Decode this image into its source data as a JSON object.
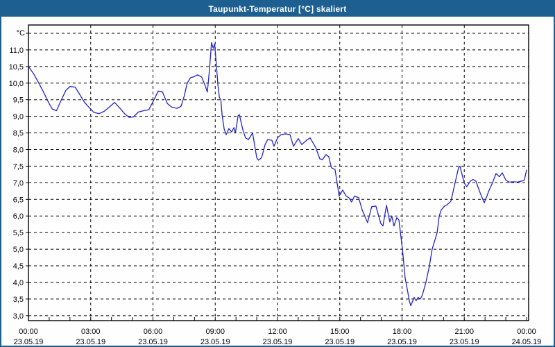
{
  "window": {
    "title": "Taupunkt-Temperatur [°C] skaliert"
  },
  "colors": {
    "titlebar_bg": "#1d5f90",
    "titlebar_text": "#ffffff",
    "frame_border": "#1d5f90",
    "page_bg": "#fdfefd",
    "grid_color": "#000000",
    "axis_color": "#000000",
    "series_color": "#2323cc"
  },
  "chart_data": {
    "type": "line",
    "title": "Taupunkt-Temperatur [°C] skaliert",
    "ylabel": "°C",
    "y_unit_label": "°C",
    "grid": true,
    "legend_position": "none",
    "ylim": [
      2.85,
      11.75
    ],
    "xlim_hours": [
      0,
      24.1
    ],
    "y_gridline_min": 3.0,
    "y_gridline_max": 11.5,
    "y_gridline_step": 0.5,
    "x_minor_tick_step_hours": 1,
    "y_ticks": [
      {
        "value": 11.0,
        "label": "11,0"
      },
      {
        "value": 10.5,
        "label": "10,5"
      },
      {
        "value": 10.0,
        "label": "10,0"
      },
      {
        "value": 9.5,
        "label": "9,5"
      },
      {
        "value": 9.0,
        "label": "9,0"
      },
      {
        "value": 8.5,
        "label": "8,5"
      },
      {
        "value": 8.0,
        "label": "8,0"
      },
      {
        "value": 7.5,
        "label": "7,5"
      },
      {
        "value": 7.0,
        "label": "7,0"
      },
      {
        "value": 6.5,
        "label": "6,5"
      },
      {
        "value": 6.0,
        "label": "6,0"
      },
      {
        "value": 5.5,
        "label": "5,5"
      },
      {
        "value": 5.0,
        "label": "5,0"
      },
      {
        "value": 4.5,
        "label": "4,5"
      },
      {
        "value": 4.0,
        "label": "4,0"
      },
      {
        "value": 3.5,
        "label": "3,5"
      },
      {
        "value": 3.0,
        "label": "3,0"
      }
    ],
    "x_ticks": [
      {
        "hours": 0,
        "time": "00:00",
        "date": "23.05.19"
      },
      {
        "hours": 3,
        "time": "03:00",
        "date": "23.05.19"
      },
      {
        "hours": 6,
        "time": "06:00",
        "date": "23.05.19"
      },
      {
        "hours": 9,
        "time": "09:00",
        "date": "23.05.19"
      },
      {
        "hours": 12,
        "time": "12:00",
        "date": "23.05.19"
      },
      {
        "hours": 15,
        "time": "15:00",
        "date": "23.05.19"
      },
      {
        "hours": 18,
        "time": "18:00",
        "date": "23.05.19"
      },
      {
        "hours": 21,
        "time": "21:00",
        "date": "23.05.19"
      },
      {
        "hours": 24,
        "time": "00:00",
        "date": "24.05.19"
      }
    ],
    "series": [
      {
        "name": "Taupunkt-Temperatur",
        "unit": "°C",
        "points": [
          [
            0.0,
            10.5
          ],
          [
            0.25,
            10.28
          ],
          [
            0.5,
            10.0
          ],
          [
            0.75,
            9.7
          ],
          [
            1.0,
            9.38
          ],
          [
            1.15,
            9.22
          ],
          [
            1.35,
            9.17
          ],
          [
            1.55,
            9.45
          ],
          [
            1.8,
            9.78
          ],
          [
            2.0,
            9.9
          ],
          [
            2.25,
            9.88
          ],
          [
            2.45,
            9.68
          ],
          [
            2.7,
            9.42
          ],
          [
            2.95,
            9.25
          ],
          [
            3.15,
            9.12
          ],
          [
            3.4,
            9.08
          ],
          [
            3.65,
            9.15
          ],
          [
            3.9,
            9.28
          ],
          [
            4.15,
            9.42
          ],
          [
            4.4,
            9.25
          ],
          [
            4.65,
            9.07
          ],
          [
            4.85,
            8.97
          ],
          [
            5.05,
            8.98
          ],
          [
            5.3,
            9.13
          ],
          [
            5.55,
            9.17
          ],
          [
            5.8,
            9.2
          ],
          [
            6.05,
            9.5
          ],
          [
            6.25,
            9.76
          ],
          [
            6.45,
            9.74
          ],
          [
            6.7,
            9.38
          ],
          [
            6.9,
            9.28
          ],
          [
            7.15,
            9.24
          ],
          [
            7.35,
            9.3
          ],
          [
            7.5,
            9.6
          ],
          [
            7.65,
            10.0
          ],
          [
            7.8,
            10.16
          ],
          [
            8.0,
            10.2
          ],
          [
            8.15,
            10.25
          ],
          [
            8.35,
            10.18
          ],
          [
            8.5,
            9.95
          ],
          [
            8.62,
            9.73
          ],
          [
            8.72,
            10.4
          ],
          [
            8.82,
            11.22
          ],
          [
            8.9,
            11.05
          ],
          [
            8.97,
            11.18
          ],
          [
            9.05,
            10.6
          ],
          [
            9.13,
            9.95
          ],
          [
            9.2,
            9.57
          ],
          [
            9.27,
            9.5
          ],
          [
            9.33,
            9.05
          ],
          [
            9.43,
            8.62
          ],
          [
            9.53,
            8.45
          ],
          [
            9.66,
            8.63
          ],
          [
            9.79,
            8.53
          ],
          [
            9.9,
            8.66
          ],
          [
            9.97,
            8.5
          ],
          [
            10.1,
            9.02
          ],
          [
            10.16,
            9.05
          ],
          [
            10.33,
            8.6
          ],
          [
            10.46,
            8.35
          ],
          [
            10.6,
            8.3
          ],
          [
            10.8,
            8.5
          ],
          [
            11.0,
            7.75
          ],
          [
            11.08,
            7.68
          ],
          [
            11.23,
            7.75
          ],
          [
            11.4,
            8.15
          ],
          [
            11.53,
            8.3
          ],
          [
            11.73,
            8.28
          ],
          [
            11.83,
            8.1
          ],
          [
            12.0,
            8.35
          ],
          [
            12.17,
            8.45
          ],
          [
            12.4,
            8.47
          ],
          [
            12.6,
            8.45
          ],
          [
            12.77,
            8.1
          ],
          [
            13.0,
            8.33
          ],
          [
            13.17,
            8.15
          ],
          [
            13.4,
            8.28
          ],
          [
            13.57,
            8.35
          ],
          [
            13.84,
            8.06
          ],
          [
            14.04,
            7.72
          ],
          [
            14.17,
            7.7
          ],
          [
            14.34,
            7.85
          ],
          [
            14.47,
            7.78
          ],
          [
            14.6,
            7.45
          ],
          [
            14.77,
            7.4
          ],
          [
            14.97,
            6.6
          ],
          [
            15.14,
            6.78
          ],
          [
            15.31,
            6.6
          ],
          [
            15.44,
            6.55
          ],
          [
            15.57,
            6.42
          ],
          [
            15.71,
            6.6
          ],
          [
            15.91,
            6.55
          ],
          [
            16.08,
            6.18
          ],
          [
            16.34,
            5.8
          ],
          [
            16.54,
            6.28
          ],
          [
            16.74,
            6.3
          ],
          [
            16.98,
            5.77
          ],
          [
            17.08,
            5.7
          ],
          [
            17.25,
            6.32
          ],
          [
            17.41,
            5.82
          ],
          [
            17.51,
            6.0
          ],
          [
            17.61,
            5.7
          ],
          [
            17.75,
            5.95
          ],
          [
            17.85,
            5.88
          ],
          [
            18.02,
            5.0
          ],
          [
            18.15,
            4.13
          ],
          [
            18.25,
            3.8
          ],
          [
            18.35,
            3.45
          ],
          [
            18.42,
            3.3
          ],
          [
            18.5,
            3.42
          ],
          [
            18.58,
            3.55
          ],
          [
            18.68,
            3.45
          ],
          [
            18.78,
            3.55
          ],
          [
            18.88,
            3.5
          ],
          [
            18.98,
            3.62
          ],
          [
            19.15,
            4.0
          ],
          [
            19.32,
            4.5
          ],
          [
            19.45,
            5.0
          ],
          [
            19.69,
            5.5
          ],
          [
            19.79,
            6.0
          ],
          [
            19.89,
            6.18
          ],
          [
            20.02,
            6.28
          ],
          [
            20.19,
            6.35
          ],
          [
            20.36,
            6.45
          ],
          [
            20.52,
            6.9
          ],
          [
            20.72,
            7.45
          ],
          [
            20.79,
            7.5
          ],
          [
            20.99,
            7.0
          ],
          [
            21.12,
            6.88
          ],
          [
            21.29,
            7.05
          ],
          [
            21.42,
            7.1
          ],
          [
            21.56,
            7.05
          ],
          [
            21.76,
            6.7
          ],
          [
            21.96,
            6.4
          ],
          [
            22.09,
            6.6
          ],
          [
            22.19,
            6.77
          ],
          [
            22.36,
            7.0
          ],
          [
            22.53,
            7.28
          ],
          [
            22.69,
            7.18
          ],
          [
            22.83,
            7.3
          ],
          [
            23.0,
            7.08
          ],
          [
            23.16,
            7.02
          ],
          [
            23.36,
            7.03
          ],
          [
            23.56,
            7.02
          ],
          [
            23.76,
            7.05
          ],
          [
            23.89,
            7.08
          ],
          [
            24.0,
            7.38
          ]
        ]
      }
    ]
  }
}
